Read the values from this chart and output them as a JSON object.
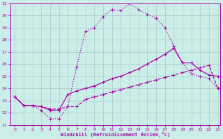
{
  "xlabel": "Windchill (Refroidissement éolien,°C)",
  "bg_color": "#cceee8",
  "grid_color": "#aacccc",
  "line_color": "#aa00aa",
  "xlim": [
    0,
    23
  ],
  "ylim": [
    21,
    31
  ],
  "yticks": [
    21,
    22,
    23,
    24,
    25,
    26,
    27,
    28,
    29,
    30,
    31
  ],
  "xticks": [
    0,
    1,
    2,
    3,
    4,
    5,
    6,
    7,
    8,
    9,
    10,
    11,
    12,
    13,
    14,
    15,
    16,
    17,
    18,
    19,
    20,
    21,
    22,
    23
  ],
  "curve1_x": [
    0,
    1,
    2,
    3,
    4,
    5,
    6,
    7,
    8,
    9,
    10,
    11,
    12,
    13,
    14,
    15,
    16,
    17,
    18,
    19,
    20,
    21,
    22,
    23
  ],
  "curve1_y": [
    23.3,
    22.6,
    22.6,
    22.2,
    21.5,
    21.5,
    22.5,
    25.8,
    28.7,
    29.0,
    29.9,
    30.5,
    30.4,
    31.0,
    30.5,
    30.1,
    29.8,
    29.0,
    27.5,
    26.1,
    25.2,
    25.0,
    24.8,
    24.0
  ],
  "curve2_x": [
    0,
    1,
    2,
    3,
    4,
    5,
    6,
    7,
    8,
    9,
    10,
    11,
    12,
    13,
    14,
    15,
    16,
    17,
    18,
    19,
    20,
    21,
    22,
    23
  ],
  "curve2_y": [
    23.3,
    22.6,
    22.6,
    22.5,
    22.2,
    22.2,
    23.5,
    23.8,
    24.0,
    24.2,
    24.5,
    24.8,
    25.0,
    25.3,
    25.6,
    26.0,
    26.4,
    26.8,
    27.3,
    26.1,
    26.1,
    25.5,
    25.1,
    25.0
  ],
  "curve3_x": [
    0,
    1,
    2,
    3,
    4,
    5,
    6,
    7,
    8,
    9,
    10,
    11,
    12,
    13,
    14,
    15,
    16,
    17,
    18,
    19,
    20,
    21,
    22,
    23
  ],
  "curve3_y": [
    23.3,
    22.6,
    22.6,
    22.5,
    22.3,
    22.3,
    22.5,
    22.5,
    23.1,
    23.3,
    23.5,
    23.7,
    23.9,
    24.1,
    24.3,
    24.5,
    24.7,
    24.9,
    25.1,
    25.3,
    25.5,
    25.7,
    25.9,
    24.0
  ]
}
